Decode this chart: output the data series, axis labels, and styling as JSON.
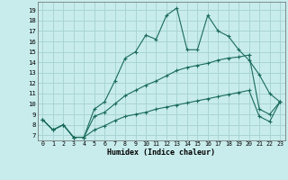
{
  "xlabel": "Humidex (Indice chaleur)",
  "xlim": [
    -0.5,
    23.5
  ],
  "ylim": [
    6.5,
    19.8
  ],
  "xticks": [
    0,
    1,
    2,
    3,
    4,
    5,
    6,
    7,
    8,
    9,
    10,
    11,
    12,
    13,
    14,
    15,
    16,
    17,
    18,
    19,
    20,
    21,
    22,
    23
  ],
  "yticks": [
    7,
    8,
    9,
    10,
    11,
    12,
    13,
    14,
    15,
    16,
    17,
    18,
    19
  ],
  "bg_color": "#c8ecec",
  "line_color": "#1a6b5a",
  "grid_color": "#aad4d4",
  "line1_x": [
    0,
    1,
    2,
    3,
    4,
    5,
    6,
    7,
    8,
    9,
    10,
    11,
    12,
    13,
    14,
    15,
    16,
    17,
    18,
    19,
    20,
    21,
    22,
    23
  ],
  "line1_y": [
    8.5,
    7.5,
    8.0,
    6.8,
    6.8,
    9.5,
    10.2,
    12.2,
    14.4,
    15.0,
    16.6,
    16.2,
    18.5,
    19.2,
    15.2,
    15.2,
    18.5,
    17.0,
    16.5,
    15.2,
    14.2,
    12.8,
    11.0,
    10.2
  ],
  "line2_x": [
    0,
    1,
    2,
    3,
    4,
    5,
    6,
    7,
    8,
    9,
    10,
    11,
    12,
    13,
    14,
    15,
    16,
    17,
    18,
    19,
    20,
    21,
    22,
    23
  ],
  "line2_y": [
    8.5,
    7.5,
    8.0,
    6.8,
    6.8,
    8.8,
    9.2,
    10.0,
    10.8,
    11.3,
    11.8,
    12.2,
    12.7,
    13.2,
    13.5,
    13.7,
    13.9,
    14.2,
    14.4,
    14.5,
    14.7,
    9.5,
    9.0,
    10.2
  ],
  "line3_x": [
    0,
    1,
    2,
    3,
    4,
    5,
    6,
    7,
    8,
    9,
    10,
    11,
    12,
    13,
    14,
    15,
    16,
    17,
    18,
    19,
    20,
    21,
    22,
    23
  ],
  "line3_y": [
    8.5,
    7.5,
    8.0,
    6.8,
    6.8,
    7.5,
    7.9,
    8.4,
    8.8,
    9.0,
    9.2,
    9.5,
    9.7,
    9.9,
    10.1,
    10.3,
    10.5,
    10.7,
    10.9,
    11.1,
    11.3,
    8.8,
    8.3,
    10.2
  ]
}
